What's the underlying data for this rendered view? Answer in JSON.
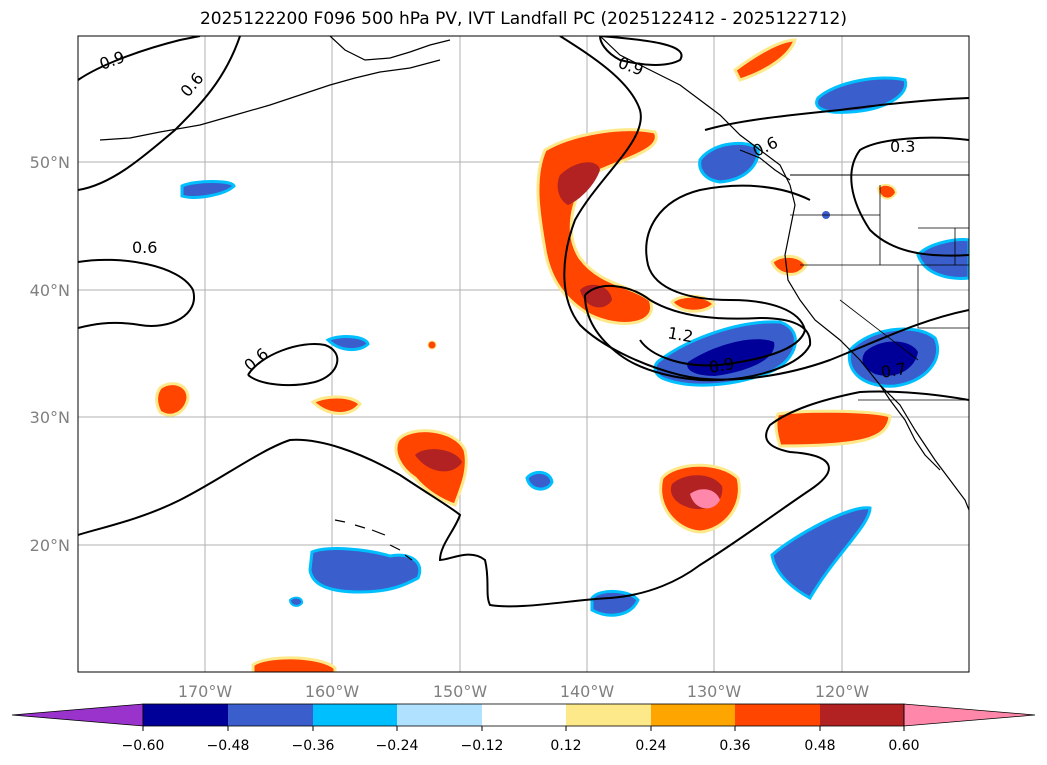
{
  "title": "2025122200 F096 500 hPa PV, IVT Landfall PC (2025122412 - 2025122712)",
  "longitude_ticks": [
    "170°W",
    "160°W",
    "150°W",
    "140°W",
    "130°W",
    "120°W"
  ],
  "latitude_ticks": [
    "50°N",
    "40°N",
    "30°N",
    "20°N"
  ],
  "contour_labels": [
    "0.9",
    "0.6",
    "0.9",
    "0.6",
    "0.3",
    "0.6",
    "0.6",
    "1.2",
    "0.9",
    "0.7"
  ],
  "colorbar": {
    "tick_labels": [
      "−0.60",
      "−0.48",
      "−0.36",
      "−0.24",
      "−0.12",
      "0.12",
      "0.24",
      "0.36",
      "0.48",
      "0.60"
    ],
    "colors": [
      "#9933cc",
      "#000099",
      "#3a5fcd",
      "#00bfff",
      "#b0e2ff",
      "#ffffff",
      "#fde98a",
      "#ffa500",
      "#ff4500",
      "#b22222",
      "#ff88aa"
    ]
  },
  "colors": {
    "land_outline": "#000000",
    "grid": "#b0b0b0",
    "contour": "#000000"
  }
}
